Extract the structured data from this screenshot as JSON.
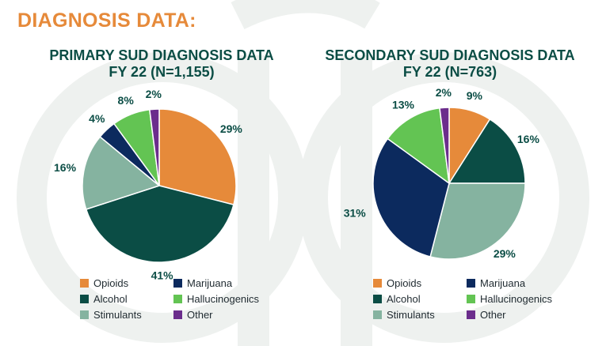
{
  "page": {
    "heading": "DIAGNOSIS DATA:"
  },
  "colors": {
    "heading": "#e68a3a",
    "title": "#0b4d45",
    "slice_label": "#0b4d45",
    "watermark": "#eef1ef",
    "Opioids": "#e68a3a",
    "Alcohol": "#0b4d45",
    "Stimulants": "#85b3a0",
    "Marijuana": "#0c2a5e",
    "Hallucinogenics": "#63c453",
    "Other": "#6b2d8c"
  },
  "chart_data": [
    {
      "type": "pie",
      "title": "PRIMARY SUD DIAGNOSIS DATA",
      "subtitle": "FY 22 (N=1,155)",
      "slices": [
        {
          "label": "Opioids",
          "value": 29,
          "display": "29%"
        },
        {
          "label": "Alcohol",
          "value": 41,
          "display": "41%"
        },
        {
          "label": "Stimulants",
          "value": 16,
          "display": "16%"
        },
        {
          "label": "Marijuana",
          "value": 4,
          "display": "4%"
        },
        {
          "label": "Hallucinogenics",
          "value": 8,
          "display": "8%"
        },
        {
          "label": "Other",
          "value": 2,
          "display": "2%"
        }
      ],
      "legend": [
        "Opioids",
        "Marijuana",
        "Alcohol",
        "Hallucinogenics",
        "Stimulants",
        "Other"
      ],
      "legend_position": "bottom"
    },
    {
      "type": "pie",
      "title": "SECONDARY SUD DIAGNOSIS DATA",
      "subtitle": "FY 22 (N=763)",
      "slices": [
        {
          "label": "Opioids",
          "value": 9,
          "display": "9%"
        },
        {
          "label": "Alcohol",
          "value": 16,
          "display": "16%"
        },
        {
          "label": "Stimulants",
          "value": 29,
          "display": "29%"
        },
        {
          "label": "Marijuana",
          "value": 31,
          "display": "31%"
        },
        {
          "label": "Hallucinogenics",
          "value": 13,
          "display": "13%"
        },
        {
          "label": "Other",
          "value": 2,
          "display": "2%"
        }
      ],
      "legend": [
        "Opioids",
        "Marijuana",
        "Alcohol",
        "Hallucinogenics",
        "Stimulants",
        "Other"
      ],
      "legend_position": "bottom"
    }
  ]
}
